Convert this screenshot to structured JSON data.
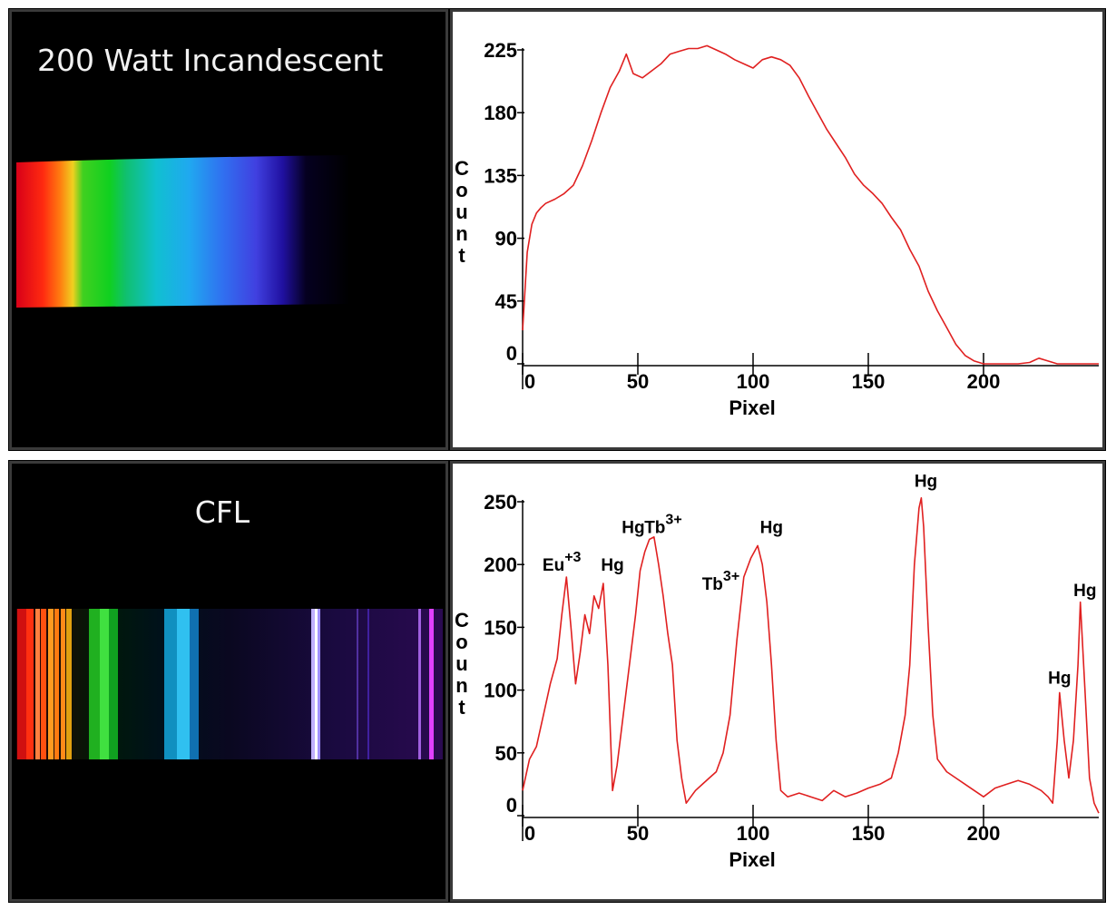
{
  "panels": [
    {
      "label": "200 Watt Incandescent",
      "spectrum_style": "continuous",
      "chart": {
        "type": "line",
        "xlabel": "Pixel",
        "ylabel": "Count",
        "xlim": [
          0,
          250
        ],
        "ylim": [
          0,
          225
        ],
        "xticks": [
          0,
          50,
          100,
          150,
          200
        ],
        "yticks": [
          0,
          45,
          90,
          135,
          180,
          225
        ],
        "color": "#e02020",
        "x": [
          0,
          2,
          4,
          6,
          8,
          10,
          14,
          18,
          22,
          26,
          30,
          34,
          38,
          42,
          45,
          48,
          52,
          56,
          60,
          64,
          68,
          72,
          76,
          80,
          84,
          88,
          92,
          96,
          100,
          104,
          108,
          112,
          116,
          120,
          124,
          128,
          132,
          136,
          140,
          144,
          148,
          152,
          156,
          160,
          164,
          168,
          172,
          176,
          180,
          184,
          188,
          192,
          196,
          200,
          205,
          210,
          215,
          220,
          224,
          228,
          232,
          236,
          240,
          250
        ],
        "y": [
          24,
          80,
          100,
          108,
          112,
          115,
          118,
          122,
          128,
          142,
          160,
          180,
          198,
          210,
          222,
          208,
          205,
          210,
          215,
          222,
          224,
          226,
          226,
          228,
          225,
          222,
          218,
          215,
          212,
          218,
          220,
          218,
          214,
          205,
          192,
          180,
          168,
          158,
          148,
          136,
          128,
          122,
          115,
          105,
          96,
          82,
          70,
          52,
          38,
          26,
          14,
          6,
          2,
          0,
          0,
          0,
          0,
          1,
          4,
          2,
          0,
          0,
          0,
          0
        ]
      },
      "annotations": []
    },
    {
      "label": "CFL",
      "spectrum_style": "lines",
      "chart": {
        "type": "line",
        "xlabel": "Pixel",
        "ylabel": "Count",
        "xlim": [
          0,
          250
        ],
        "ylim": [
          0,
          250
        ],
        "xticks": [
          0,
          50,
          100,
          150,
          200
        ],
        "yticks": [
          0,
          50,
          100,
          150,
          200,
          250
        ],
        "color": "#e02020",
        "x": [
          0,
          3,
          6,
          9,
          12,
          15,
          17,
          19,
          21,
          23,
          25,
          27,
          29,
          31,
          33,
          35,
          37,
          39,
          41,
          43,
          45,
          47,
          49,
          51,
          53,
          55,
          57,
          59,
          61,
          63,
          65,
          67,
          69,
          71,
          73,
          75,
          78,
          81,
          84,
          87,
          90,
          93,
          96,
          99,
          102,
          104,
          106,
          108,
          110,
          112,
          115,
          120,
          125,
          130,
          135,
          140,
          145,
          150,
          155,
          160,
          163,
          166,
          168,
          170,
          172,
          173,
          174,
          176,
          178,
          180,
          184,
          188,
          192,
          196,
          200,
          205,
          210,
          215,
          220,
          225,
          228,
          230,
          232,
          233,
          235,
          237,
          239,
          241,
          242,
          244,
          246,
          248,
          250
        ],
        "y": [
          20,
          45,
          55,
          80,
          105,
          125,
          160,
          190,
          150,
          105,
          130,
          160,
          145,
          175,
          165,
          185,
          120,
          20,
          40,
          70,
          100,
          130,
          160,
          195,
          210,
          220,
          222,
          200,
          175,
          145,
          120,
          60,
          30,
          10,
          15,
          20,
          25,
          30,
          35,
          50,
          80,
          140,
          190,
          205,
          215,
          200,
          170,
          120,
          60,
          20,
          15,
          18,
          15,
          12,
          20,
          15,
          18,
          22,
          25,
          30,
          50,
          80,
          120,
          200,
          245,
          253,
          230,
          150,
          80,
          45,
          35,
          30,
          25,
          20,
          15,
          22,
          25,
          28,
          25,
          20,
          15,
          10,
          60,
          98,
          60,
          30,
          60,
          120,
          170,
          100,
          30,
          10,
          2
        ]
      },
      "annotations": [
        {
          "base": "Eu",
          "sup": "+3",
          "x": 17,
          "y": 195
        },
        {
          "base": "Hg",
          "sup": "",
          "x": 39,
          "y": 195
        },
        {
          "base": "Hg",
          "sup": "",
          "x": 48,
          "y": 225
        },
        {
          "base": "Tb",
          "sup": "3+",
          "x": 61,
          "y": 225
        },
        {
          "base": "Tb",
          "sup": "3+",
          "x": 86,
          "y": 180
        },
        {
          "base": "Hg",
          "sup": "",
          "x": 108,
          "y": 225
        },
        {
          "base": "Hg",
          "sup": "",
          "x": 175,
          "y": 262
        },
        {
          "base": "Hg",
          "sup": "",
          "x": 244,
          "y": 175
        },
        {
          "base": "Hg",
          "sup": "",
          "x": 233,
          "y": 105
        }
      ]
    }
  ]
}
